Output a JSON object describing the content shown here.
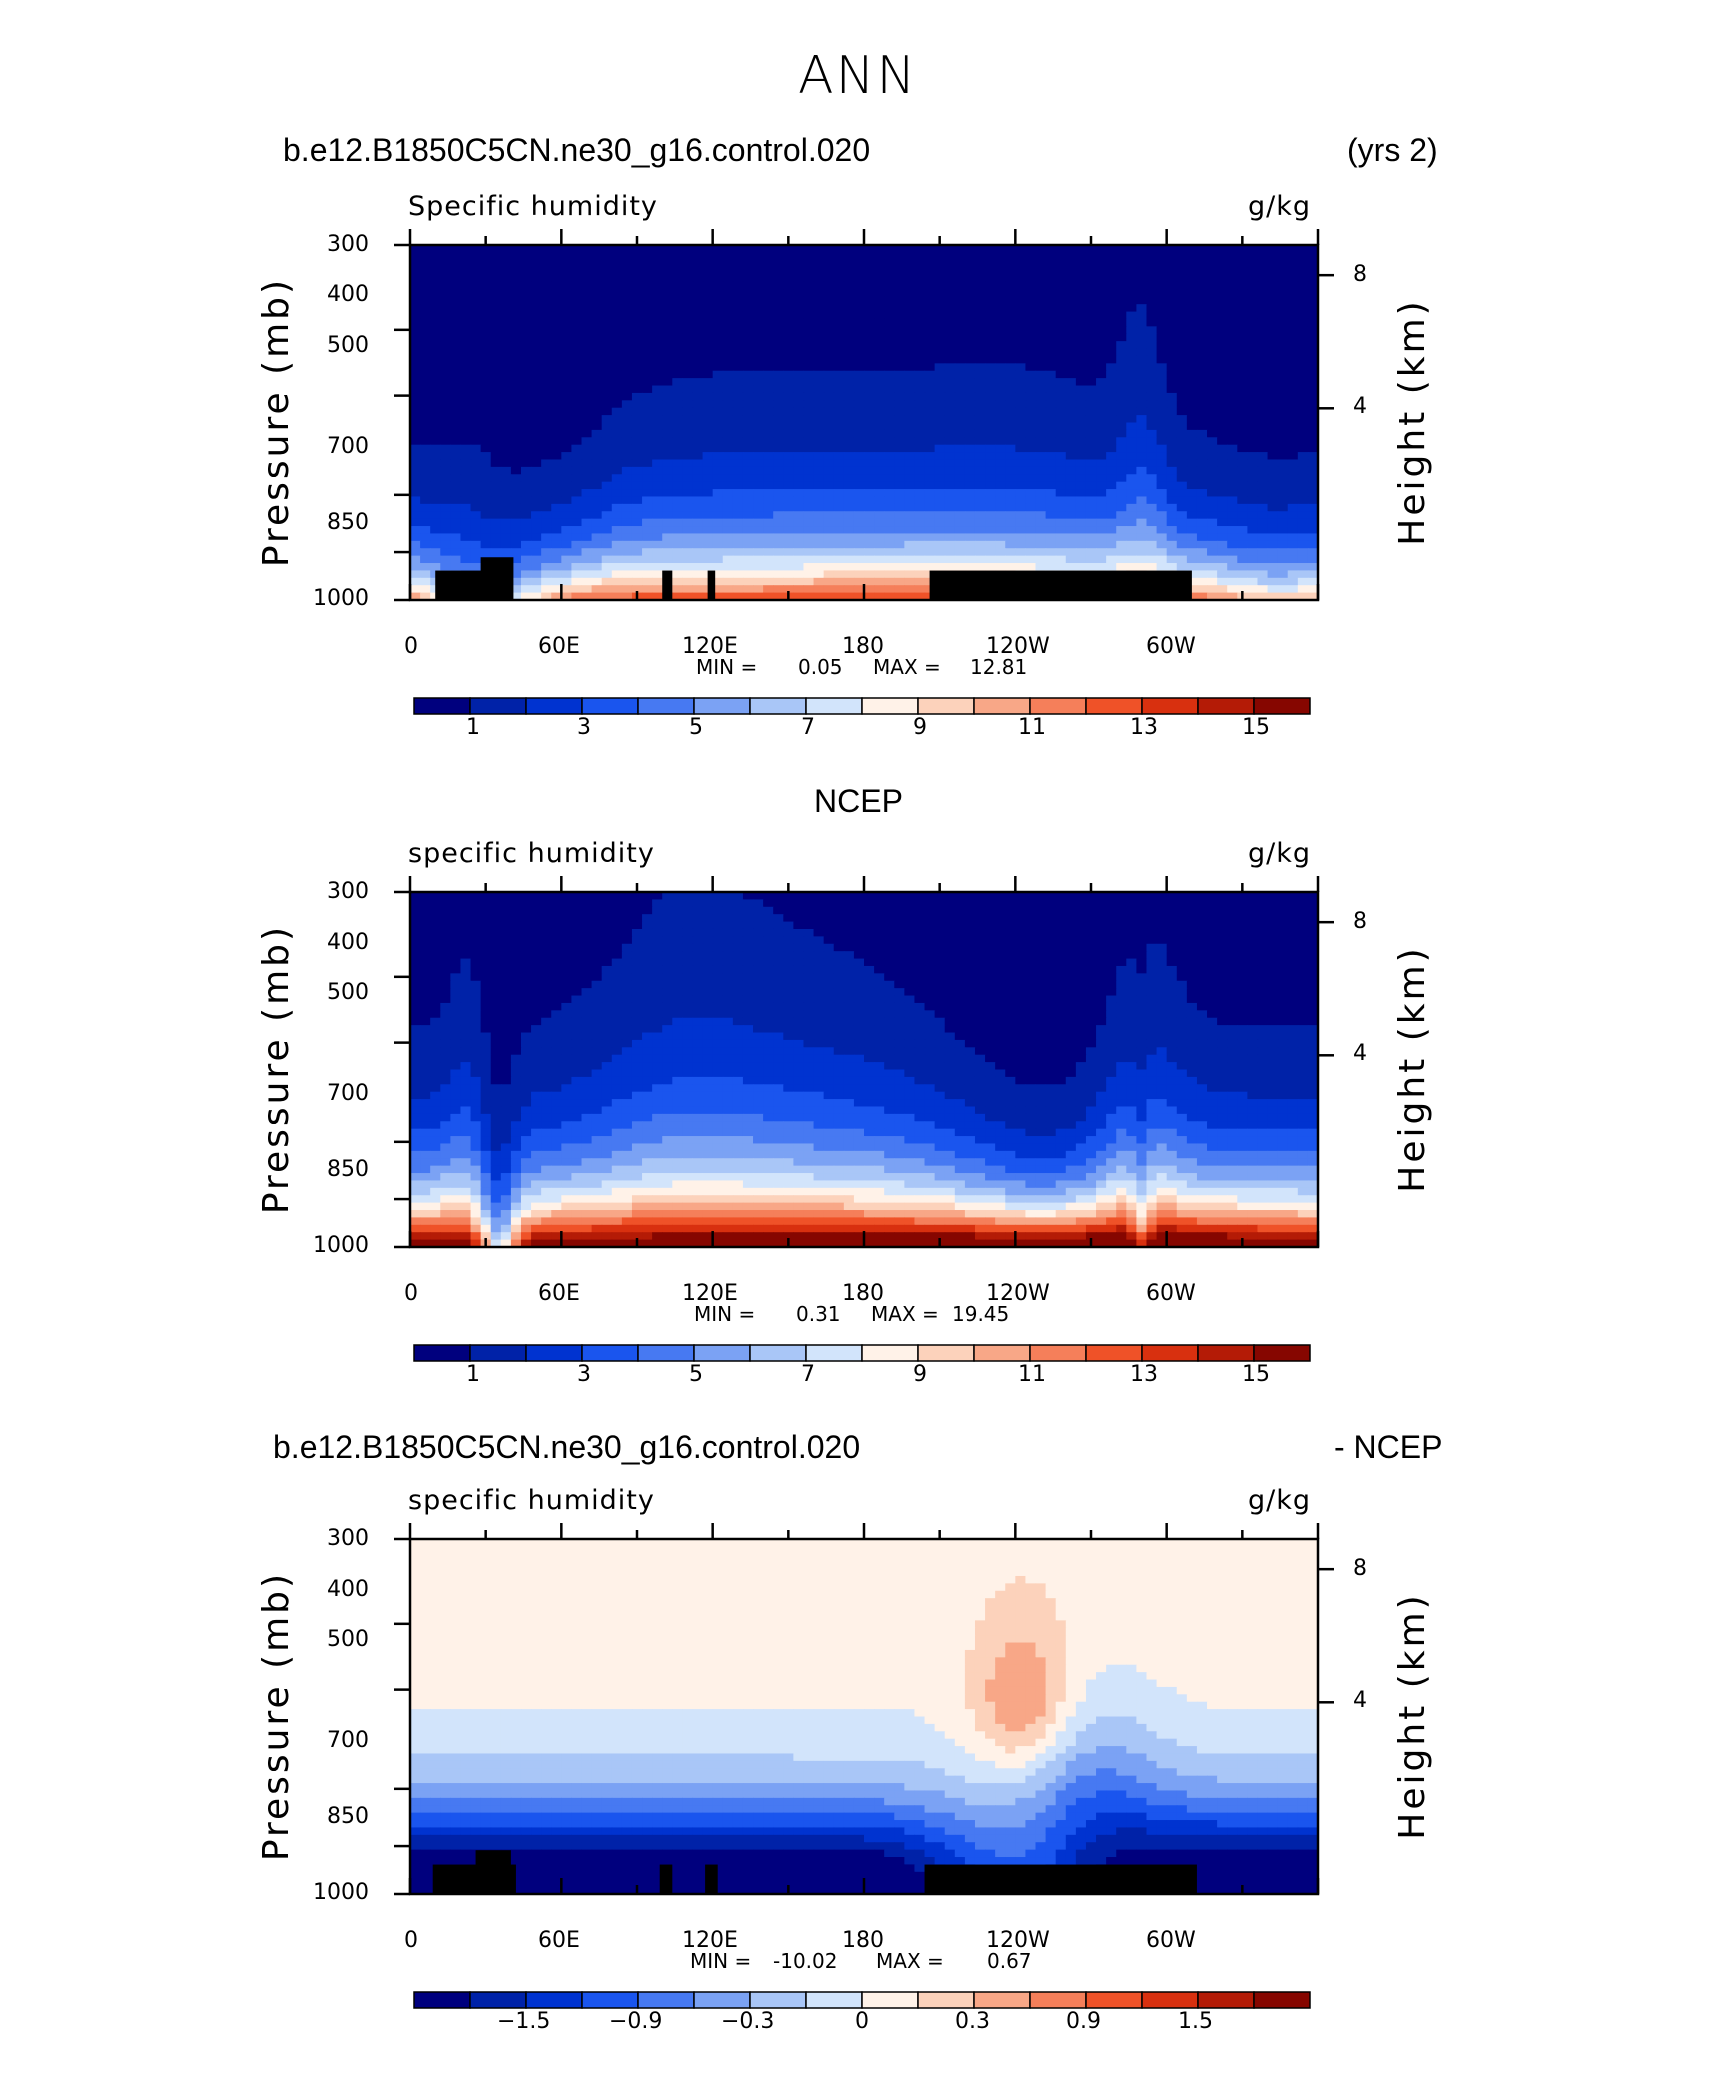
{
  "page": {
    "title": "ANN"
  },
  "colors": {
    "palette": [
      "#00007e",
      "#0022a8",
      "#0033d0",
      "#1a55ee",
      "#4779f2",
      "#7ba2f4",
      "#a9c6f7",
      "#d2e4fb",
      "#fff2e8",
      "#fcd2bb",
      "#f8a787",
      "#f57f5a",
      "#ef5228",
      "#d8300f",
      "#b41b06",
      "#860600"
    ],
    "terrain": "#000000",
    "axis": "#000000"
  },
  "chart_data": [
    {
      "type": "contour",
      "header_left": "b.e12.B1850C5CN.ne30_g16.control.020",
      "header_right": "(yrs 2)",
      "variable": "Specific humidity",
      "units": "g/kg",
      "ylabel": "Pressure (mb)",
      "y2label": "Height (km)",
      "y_ticks": [
        "300",
        "400",
        "500",
        "700",
        "850",
        "1000"
      ],
      "y2_ticks": [
        "8",
        "4"
      ],
      "x_ticks": [
        "0",
        "60E",
        "120E",
        "180",
        "120W",
        "60W"
      ],
      "min_label": "MIN =",
      "min_value": "0.05",
      "max_label": "MAX =",
      "max_value": "12.81",
      "colorbar_labels": [
        "1",
        "3",
        "5",
        "7",
        "9",
        "11",
        "13",
        "15"
      ],
      "colorbar_levels": [
        0,
        1,
        2,
        3,
        4,
        5,
        6,
        7,
        8,
        9,
        10,
        11,
        12,
        13,
        14,
        15,
        16
      ],
      "ylim": [
        1000,
        300
      ],
      "xlim": [
        0,
        360
      ],
      "mask": true
    },
    {
      "type": "contour",
      "header_center": "NCEP",
      "variable": "specific humidity",
      "units": "g/kg",
      "ylabel": "Pressure (mb)",
      "y2label": "Height (km)",
      "y_ticks": [
        "300",
        "400",
        "500",
        "700",
        "850",
        "1000"
      ],
      "y2_ticks": [
        "8",
        "4"
      ],
      "x_ticks": [
        "0",
        "60E",
        "120E",
        "180",
        "120W",
        "60W"
      ],
      "min_label": "MIN =",
      "min_value": "0.31",
      "max_label": "MAX =",
      "max_value": "19.45",
      "colorbar_labels": [
        "1",
        "3",
        "5",
        "7",
        "9",
        "11",
        "13",
        "15"
      ],
      "colorbar_levels": [
        0,
        1,
        2,
        3,
        4,
        5,
        6,
        7,
        8,
        9,
        10,
        11,
        12,
        13,
        14,
        15,
        16
      ],
      "ylim": [
        1000,
        300
      ],
      "xlim": [
        0,
        360
      ],
      "mask": false
    },
    {
      "type": "contour",
      "header_left": "b.e12.B1850C5CN.ne30_g16.control.020",
      "header_right": "- NCEP",
      "variable": "specific humidity",
      "units": "g/kg",
      "ylabel": "Pressure (mb)",
      "y2label": "Height (km)",
      "y_ticks": [
        "300",
        "400",
        "500",
        "700",
        "850",
        "1000"
      ],
      "y2_ticks": [
        "8",
        "4"
      ],
      "x_ticks": [
        "0",
        "60E",
        "120E",
        "180",
        "120W",
        "60W"
      ],
      "min_label": "MIN =",
      "min_value": "-10.02",
      "max_label": "MAX =",
      "max_value": "0.67",
      "colorbar_labels": [
        "−1.5",
        "−0.9",
        "−0.3",
        "0",
        "0.3",
        "0.9",
        "1.5"
      ],
      "colorbar_levels": [
        -2.4,
        -2.1,
        -1.8,
        -1.5,
        -1.2,
        -0.9,
        -0.6,
        -0.3,
        0,
        0.3,
        0.6,
        0.9,
        1.2,
        1.5,
        1.8,
        2.1,
        2.4
      ],
      "ylim": [
        1000,
        300
      ],
      "xlim": [
        0,
        360
      ],
      "mask": true
    }
  ]
}
